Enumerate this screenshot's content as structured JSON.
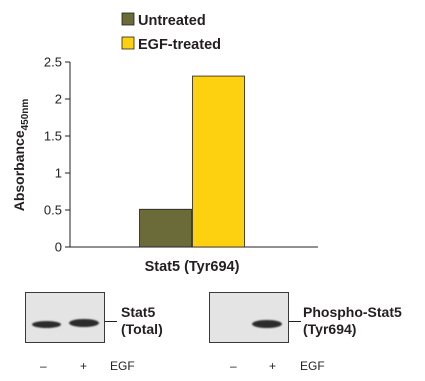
{
  "chart_data": {
    "type": "bar",
    "categories": [
      "Stat5 (Tyr694)"
    ],
    "series": [
      {
        "name": "Untreated",
        "values": [
          0.51
        ],
        "color": "#6b6b3a"
      },
      {
        "name": "EGF-treated",
        "values": [
          2.31
        ],
        "color": "#fdd10f"
      }
    ],
    "ylabel": "Absorbance",
    "ylabel_sub": "450nm",
    "ylim": [
      0,
      2.5
    ],
    "yticks": [
      0,
      0.5,
      1,
      1.5,
      2,
      2.5
    ],
    "ytick_labels": [
      "0",
      "0.5",
      "1",
      "1.5",
      "2",
      "2.5"
    ],
    "grid": false,
    "legend_position": "top"
  },
  "blots": [
    {
      "label_line1": "Stat5",
      "label_line2": "(Total)",
      "lanes": [
        "–",
        "+"
      ],
      "treatment": "EGF"
    },
    {
      "label_line1": "Phospho-Stat5",
      "label_line2": "(Tyr694)",
      "lanes": [
        "–",
        "+"
      ],
      "treatment": "EGF"
    }
  ]
}
